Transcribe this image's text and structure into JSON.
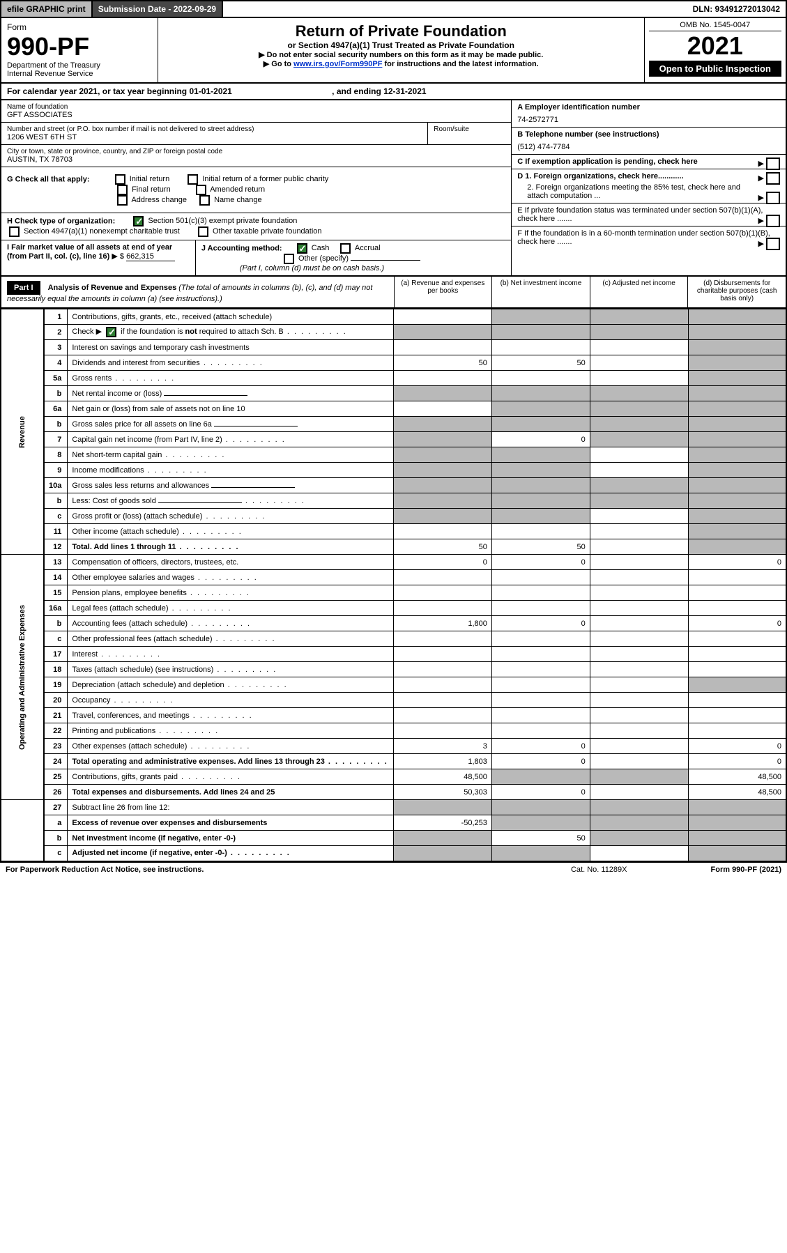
{
  "topbar": {
    "efile": "efile GRAPHIC print",
    "subdate": "Submission Date - 2022-09-29",
    "dln": "DLN: 93491272013042"
  },
  "header": {
    "form_label": "Form",
    "form_no": "990-PF",
    "dept": "Department of the Treasury",
    "irs": "Internal Revenue Service",
    "title": "Return of Private Foundation",
    "subtitle": "or Section 4947(a)(1) Trust Treated as Private Foundation",
    "instr1": "▶ Do not enter social security numbers on this form as it may be made public.",
    "instr2_pre": "▶ Go to ",
    "instr2_link": "www.irs.gov/Form990PF",
    "instr2_post": " for instructions and the latest information.",
    "omb": "OMB No. 1545-0047",
    "year": "2021",
    "open": "Open to Public Inspection"
  },
  "calyear": {
    "text_pre": "For calendar year 2021, or tax year beginning ",
    "begin": "01-01-2021",
    "mid": " , and ending ",
    "end": "12-31-2021"
  },
  "info": {
    "name_label": "Name of foundation",
    "name": "GFT ASSOCIATES",
    "addr_label": "Number and street (or P.O. box number if mail is not delivered to street address)",
    "room_label": "Room/suite",
    "addr": "1206 WEST 6TH ST",
    "city_label": "City or town, state or province, country, and ZIP or foreign postal code",
    "city": "AUSTIN, TX  78703",
    "a_label": "A Employer identification number",
    "a_val": "74-2572771",
    "b_label": "B Telephone number (see instructions)",
    "b_val": "(512) 474-7784",
    "c_label": "C If exemption application is pending, check here",
    "d1": "D 1. Foreign organizations, check here............",
    "d2": "2. Foreign organizations meeting the 85% test, check here and attach computation ...",
    "e": "E  If private foundation status was terminated under section 507(b)(1)(A), check here .......",
    "f": "F  If the foundation is in a 60-month termination under section 507(b)(1)(B), check here .......",
    "g_label": "G Check all that apply:",
    "g_opts": [
      "Initial return",
      "Initial return of a former public charity",
      "Final return",
      "Amended return",
      "Address change",
      "Name change"
    ],
    "h_label": "H Check type of organization:",
    "h1": "Section 501(c)(3) exempt private foundation",
    "h2": "Section 4947(a)(1) nonexempt charitable trust",
    "h3": "Other taxable private foundation",
    "i_label": "I Fair market value of all assets at end of year (from Part II, col. (c), line 16)",
    "i_val": "662,315",
    "j_label": "J Accounting method:",
    "j_cash": "Cash",
    "j_accr": "Accrual",
    "j_other": "Other (specify)",
    "j_note": "(Part I, column (d) must be on cash basis.)"
  },
  "part1": {
    "badge": "Part I",
    "title": "Analysis of Revenue and Expenses",
    "title_note": " (The total of amounts in columns (b), (c), and (d) may not necessarily equal the amounts in column (a) (see instructions).)",
    "col_a": "(a)   Revenue and expenses per books",
    "col_b": "(b)   Net investment income",
    "col_c": "(c)   Adjusted net income",
    "col_d": "(d)  Disbursements for charitable purposes (cash basis only)"
  },
  "sections": {
    "revenue": "Revenue",
    "expenses": "Operating and Administrative Expenses"
  },
  "rows": [
    {
      "n": "1",
      "d": "Contributions, gifts, grants, etc., received (attach schedule)",
      "a": "",
      "b": "g",
      "c": "g",
      "dd": "g"
    },
    {
      "n": "2",
      "d": "Check ▶ ☑ if the foundation is not required to attach Sch. B",
      "a": "g",
      "b": "g",
      "c": "g",
      "dd": "g",
      "checked": true,
      "dots": true
    },
    {
      "n": "3",
      "d": "Interest on savings and temporary cash investments",
      "a": "",
      "b": "",
      "c": "",
      "dd": "g"
    },
    {
      "n": "4",
      "d": "Dividends and interest from securities",
      "a": "50",
      "b": "50",
      "c": "",
      "dd": "g",
      "dots": true
    },
    {
      "n": "5a",
      "d": "Gross rents",
      "a": "",
      "b": "",
      "c": "",
      "dd": "g",
      "dots": true
    },
    {
      "n": "b",
      "d": "Net rental income or (loss)",
      "a": "g",
      "b": "g",
      "c": "g",
      "dd": "g",
      "inline": true
    },
    {
      "n": "6a",
      "d": "Net gain or (loss) from sale of assets not on line 10",
      "a": "",
      "b": "g",
      "c": "g",
      "dd": "g"
    },
    {
      "n": "b",
      "d": "Gross sales price for all assets on line 6a",
      "a": "g",
      "b": "g",
      "c": "g",
      "dd": "g",
      "inline": true
    },
    {
      "n": "7",
      "d": "Capital gain net income (from Part IV, line 2)",
      "a": "g",
      "b": "0",
      "c": "g",
      "dd": "g",
      "dots": true
    },
    {
      "n": "8",
      "d": "Net short-term capital gain",
      "a": "g",
      "b": "g",
      "c": "",
      "dd": "g",
      "dots": true
    },
    {
      "n": "9",
      "d": "Income modifications",
      "a": "g",
      "b": "g",
      "c": "",
      "dd": "g",
      "dots": true
    },
    {
      "n": "10a",
      "d": "Gross sales less returns and allowances",
      "a": "g",
      "b": "g",
      "c": "g",
      "dd": "g",
      "inline": true
    },
    {
      "n": "b",
      "d": "Less: Cost of goods sold",
      "a": "g",
      "b": "g",
      "c": "g",
      "dd": "g",
      "inline": true,
      "dots": true
    },
    {
      "n": "c",
      "d": "Gross profit or (loss) (attach schedule)",
      "a": "g",
      "b": "g",
      "c": "",
      "dd": "g",
      "dots": true
    },
    {
      "n": "11",
      "d": "Other income (attach schedule)",
      "a": "",
      "b": "",
      "c": "",
      "dd": "g",
      "dots": true
    },
    {
      "n": "12",
      "d": "Total. Add lines 1 through 11",
      "a": "50",
      "b": "50",
      "c": "",
      "dd": "g",
      "bold": true,
      "dots": true
    }
  ],
  "exp_rows": [
    {
      "n": "13",
      "d": "Compensation of officers, directors, trustees, etc.",
      "a": "0",
      "b": "0",
      "c": "",
      "dd": "0"
    },
    {
      "n": "14",
      "d": "Other employee salaries and wages",
      "a": "",
      "b": "",
      "c": "",
      "dd": "",
      "dots": true
    },
    {
      "n": "15",
      "d": "Pension plans, employee benefits",
      "a": "",
      "b": "",
      "c": "",
      "dd": "",
      "dots": true
    },
    {
      "n": "16a",
      "d": "Legal fees (attach schedule)",
      "a": "",
      "b": "",
      "c": "",
      "dd": "",
      "dots": true
    },
    {
      "n": "b",
      "d": "Accounting fees (attach schedule)",
      "a": "1,800",
      "b": "0",
      "c": "",
      "dd": "0",
      "dots": true
    },
    {
      "n": "c",
      "d": "Other professional fees (attach schedule)",
      "a": "",
      "b": "",
      "c": "",
      "dd": "",
      "dots": true
    },
    {
      "n": "17",
      "d": "Interest",
      "a": "",
      "b": "",
      "c": "",
      "dd": "",
      "dots": true
    },
    {
      "n": "18",
      "d": "Taxes (attach schedule) (see instructions)",
      "a": "",
      "b": "",
      "c": "",
      "dd": "",
      "dots": true
    },
    {
      "n": "19",
      "d": "Depreciation (attach schedule) and depletion",
      "a": "",
      "b": "",
      "c": "",
      "dd": "g",
      "dots": true
    },
    {
      "n": "20",
      "d": "Occupancy",
      "a": "",
      "b": "",
      "c": "",
      "dd": "",
      "dots": true
    },
    {
      "n": "21",
      "d": "Travel, conferences, and meetings",
      "a": "",
      "b": "",
      "c": "",
      "dd": "",
      "dots": true
    },
    {
      "n": "22",
      "d": "Printing and publications",
      "a": "",
      "b": "",
      "c": "",
      "dd": "",
      "dots": true
    },
    {
      "n": "23",
      "d": "Other expenses (attach schedule)",
      "a": "3",
      "b": "0",
      "c": "",
      "dd": "0",
      "dots": true
    },
    {
      "n": "24",
      "d": "Total operating and administrative expenses. Add lines 13 through 23",
      "a": "1,803",
      "b": "0",
      "c": "",
      "dd": "0",
      "bold": true,
      "twoRow": true,
      "dots": true
    },
    {
      "n": "25",
      "d": "Contributions, gifts, grants paid",
      "a": "48,500",
      "b": "g",
      "c": "g",
      "dd": "48,500",
      "dots": true
    },
    {
      "n": "26",
      "d": "Total expenses and disbursements. Add lines 24 and 25",
      "a": "50,303",
      "b": "0",
      "c": "",
      "dd": "48,500",
      "bold": true
    }
  ],
  "bottom_rows": [
    {
      "n": "27",
      "d": "Subtract line 26 from line 12:",
      "a": "g",
      "b": "g",
      "c": "g",
      "dd": "g"
    },
    {
      "n": "a",
      "d": "Excess of revenue over expenses and disbursements",
      "a": "-50,253",
      "b": "g",
      "c": "g",
      "dd": "g",
      "bold": true
    },
    {
      "n": "b",
      "d": "Net investment income (if negative, enter -0-)",
      "a": "g",
      "b": "50",
      "c": "g",
      "dd": "g",
      "bold": true
    },
    {
      "n": "c",
      "d": "Adjusted net income (if negative, enter -0-)",
      "a": "g",
      "b": "g",
      "c": "",
      "dd": "g",
      "bold": true,
      "dots": true
    }
  ],
  "footer": {
    "left": "For Paperwork Reduction Act Notice, see instructions.",
    "mid": "Cat. No. 11289X",
    "right": "Form 990-PF (2021)"
  }
}
